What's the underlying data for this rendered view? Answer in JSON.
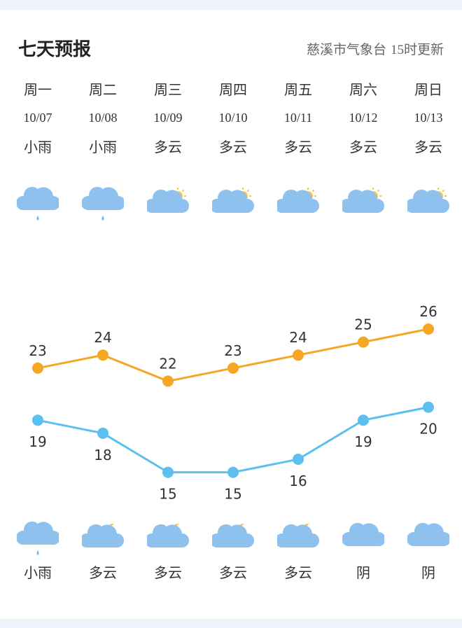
{
  "header": {
    "title": "七天预报",
    "source": "慈溪市气象台",
    "update_time": "15时更新"
  },
  "colors": {
    "high": "#f5a623",
    "low": "#5bc0f0",
    "cloud": "#8fc1ee",
    "sun": "#f7c552",
    "moon": "#f7c552",
    "rain": "#7bb5e8"
  },
  "days": [
    {
      "weekday": "周一",
      "date": "10/07",
      "day_weather": "小雨",
      "day_icon": "rain-cloud-icon",
      "night_weather": "小雨",
      "night_icon": "rain-cloud-icon"
    },
    {
      "weekday": "周二",
      "date": "10/08",
      "day_weather": "小雨",
      "day_icon": "rain-cloud-icon",
      "night_weather": "多云",
      "night_icon": "cloudy-night-icon"
    },
    {
      "weekday": "周三",
      "date": "10/09",
      "day_weather": "多云",
      "day_icon": "cloudy-day-icon",
      "night_weather": "多云",
      "night_icon": "cloudy-night-icon"
    },
    {
      "weekday": "周四",
      "date": "10/10",
      "day_weather": "多云",
      "day_icon": "cloudy-day-icon",
      "night_weather": "多云",
      "night_icon": "cloudy-night-icon"
    },
    {
      "weekday": "周五",
      "date": "10/11",
      "day_weather": "多云",
      "day_icon": "cloudy-day-icon",
      "night_weather": "多云",
      "night_icon": "cloudy-night-icon"
    },
    {
      "weekday": "周六",
      "date": "10/12",
      "day_weather": "多云",
      "day_icon": "cloudy-day-icon",
      "night_weather": "阴",
      "night_icon": "overcast-icon"
    },
    {
      "weekday": "周日",
      "date": "10/13",
      "day_weather": "多云",
      "day_icon": "cloudy-day-icon",
      "night_weather": "阴",
      "night_icon": "overcast-icon"
    }
  ],
  "chart_data": {
    "type": "line",
    "categories": [
      "10/07",
      "10/08",
      "10/09",
      "10/10",
      "10/11",
      "10/12",
      "10/13"
    ],
    "series": [
      {
        "values": [
          23,
          24,
          22,
          23,
          24,
          25,
          26
        ]
      },
      {
        "values": [
          19,
          18,
          15,
          15,
          16,
          19,
          20
        ]
      }
    ],
    "xlabel": "",
    "ylabel": "",
    "grid": false
  }
}
